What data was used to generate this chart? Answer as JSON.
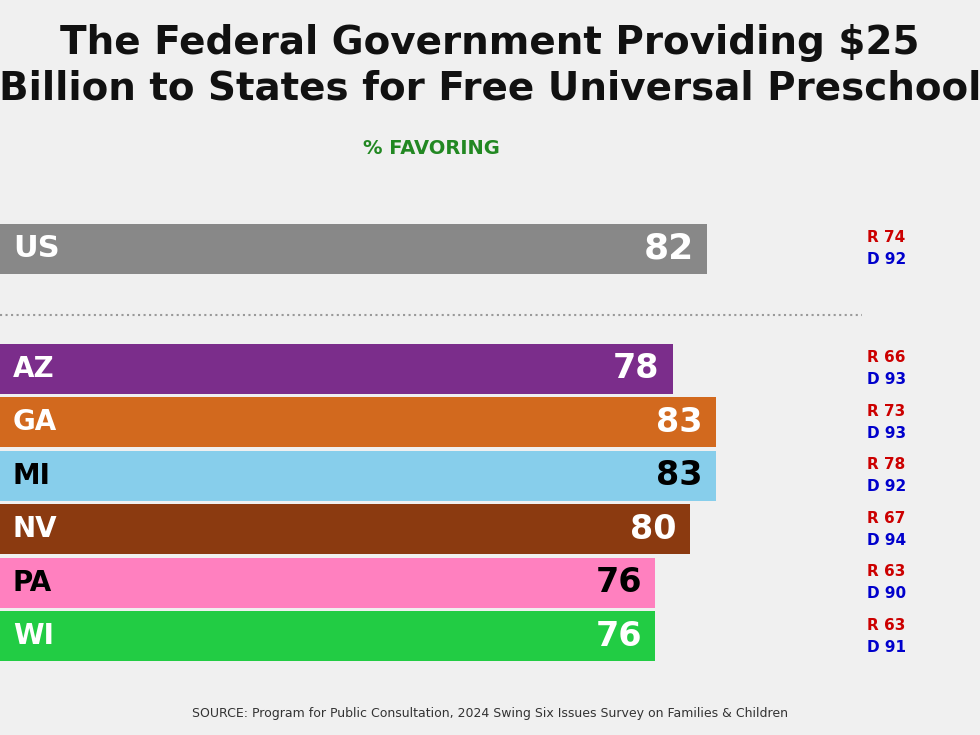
{
  "title_line1": "The Federal Government Providing $25",
  "title_line2": "Billion to States for Free Universal Preschool",
  "subtitle": "% FAVORING",
  "source": "SOURCE: Program for Public Consultation, 2024 Swing Six Issues Survey on Families & Children",
  "background_color": "#f0f0f0",
  "chart_bg": "#ffffff",
  "bars": [
    {
      "label": "US",
      "value": 82,
      "color": "#888888",
      "label_color": "#ffffff",
      "R": 74,
      "D": 92,
      "is_us": true
    },
    {
      "label": "AZ",
      "value": 78,
      "color": "#7b2d8b",
      "label_color": "#ffffff",
      "R": 66,
      "D": 93,
      "is_us": false
    },
    {
      "label": "GA",
      "value": 83,
      "color": "#d2691e",
      "label_color": "#ffffff",
      "R": 73,
      "D": 93,
      "is_us": false
    },
    {
      "label": "MI",
      "value": 83,
      "color": "#87ceeb",
      "label_color": "#000000",
      "R": 78,
      "D": 92,
      "is_us": false
    },
    {
      "label": "NV",
      "value": 80,
      "color": "#8b3a10",
      "label_color": "#ffffff",
      "R": 67,
      "D": 94,
      "is_us": false
    },
    {
      "label": "PA",
      "value": 76,
      "color": "#ff80bf",
      "label_color": "#000000",
      "R": 63,
      "D": 90,
      "is_us": false
    },
    {
      "label": "WI",
      "value": 76,
      "color": "#22cc44",
      "label_color": "#ffffff",
      "R": 63,
      "D": 91,
      "is_us": false
    }
  ],
  "xlim": [
    0,
    100
  ],
  "r_color": "#cc0000",
  "d_color": "#0000cc"
}
